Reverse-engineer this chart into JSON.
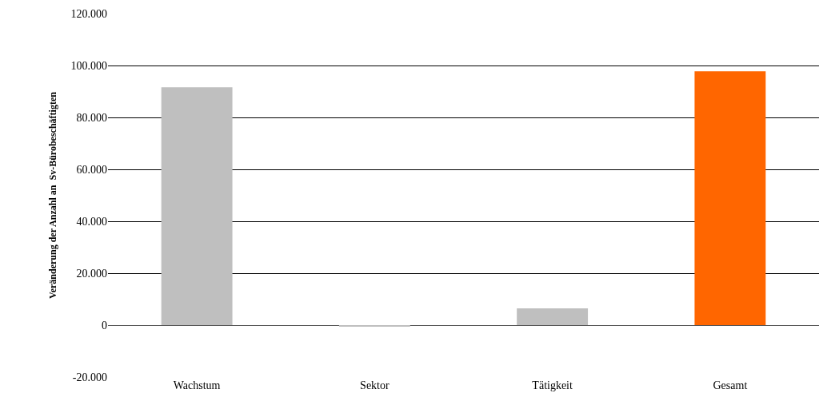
{
  "chart_data": {
    "type": "bar",
    "ylabel": "Veränderung der Anzahl an  Sv-Bürobeschäftigten",
    "categories": [
      "Wachstum",
      "Sektor",
      "Tätigkeit",
      "Gesamt"
    ],
    "values": [
      91600,
      -500,
      6500,
      97800
    ],
    "colors": [
      "#bfbfbf",
      "#bfbfbf",
      "#bfbfbf",
      "#ff6600"
    ],
    "ylim": [
      -20000,
      120000
    ],
    "yticks": [
      {
        "value": -20000,
        "label": "-20.000"
      },
      0,
      {
        "value": 20000,
        "label": "20.000"
      },
      {
        "value": 40000,
        "label": "40.000"
      },
      {
        "value": 60000,
        "label": "60.000"
      },
      {
        "value": 80000,
        "label": "80.000"
      },
      {
        "value": 100000,
        "label": "100.000"
      },
      {
        "value": 120000,
        "label": "120.000"
      }
    ],
    "grid": "y"
  }
}
